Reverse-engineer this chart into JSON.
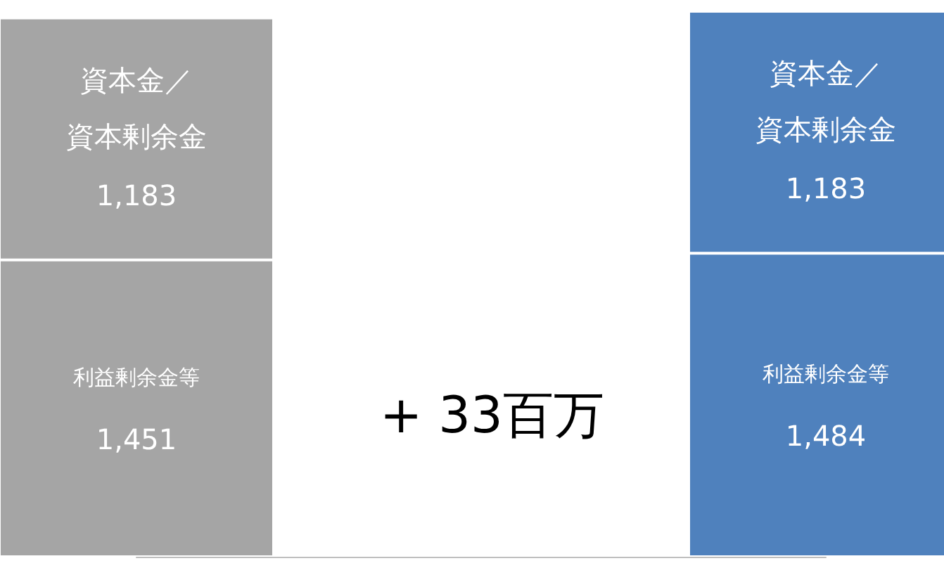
{
  "chart_data": {
    "type": "bar",
    "stacked": true,
    "categories": [
      null,
      null
    ],
    "series": [
      {
        "name": "利益剰余金等",
        "colors": [
          "#a5a5a5",
          "#4f81bd"
        ],
        "values": [
          1451,
          1484
        ],
        "value_labels": [
          "1,451",
          "1,484"
        ]
      },
      {
        "name": "資本金／資本剰余金",
        "colors": [
          "#a5a5a5",
          "#4f81bd"
        ],
        "values": [
          1183,
          1183
        ],
        "value_labels": [
          "1,183",
          "1,183"
        ]
      }
    ],
    "legend": false,
    "grid": false,
    "annotations": [
      "+ 33百万"
    ]
  }
}
